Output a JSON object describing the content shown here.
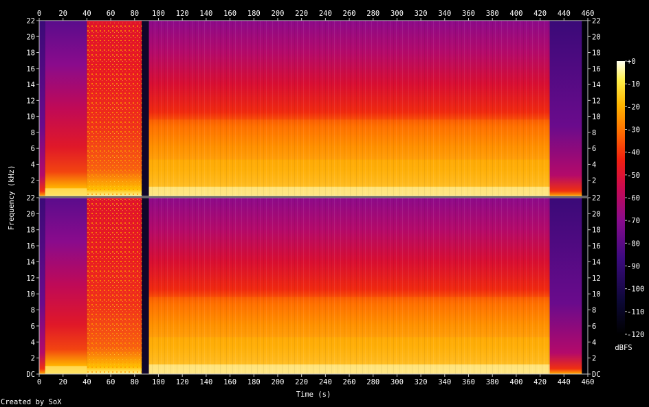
{
  "chart_data": {
    "type": "heatmap",
    "xlabel": "Time (s)",
    "ylabel": "Frequency (kHz)",
    "xlim": [
      0,
      460
    ],
    "ylim": [
      0,
      22
    ],
    "x_ticks": [
      "0",
      "20",
      "40",
      "60",
      "80",
      "100",
      "120",
      "140",
      "160",
      "180",
      "200",
      "220",
      "240",
      "260",
      "280",
      "300",
      "320",
      "340",
      "360",
      "380",
      "400",
      "420",
      "440",
      "460"
    ],
    "y_ticks_top": [
      "2",
      "4",
      "6",
      "8",
      "10",
      "12",
      "14",
      "16",
      "18",
      "20",
      "22"
    ],
    "y_ticks_bottom": [
      "DC",
      "2",
      "4",
      "6",
      "8",
      "10",
      "12",
      "14",
      "16",
      "18",
      "20",
      "22"
    ],
    "channels": 2,
    "colorbar": {
      "label": "dBFS",
      "range": [
        -120,
        0
      ],
      "ticks": [
        "+0",
        "-10",
        "-20",
        "-30",
        "-40",
        "-50",
        "-60",
        "-70",
        "-80",
        "-90",
        "-100",
        "-110",
        "-120"
      ]
    },
    "segments": [
      {
        "start": 0,
        "end": 5,
        "level": "low"
      },
      {
        "start": 5,
        "end": 40,
        "level": "medium"
      },
      {
        "start": 40,
        "end": 86,
        "level": "wideband-tonal"
      },
      {
        "start": 86,
        "end": 92,
        "level": "gap"
      },
      {
        "start": 92,
        "end": 428,
        "level": "loud"
      },
      {
        "start": 428,
        "end": 455,
        "level": "fade"
      }
    ]
  },
  "footer": "Created by SoX"
}
